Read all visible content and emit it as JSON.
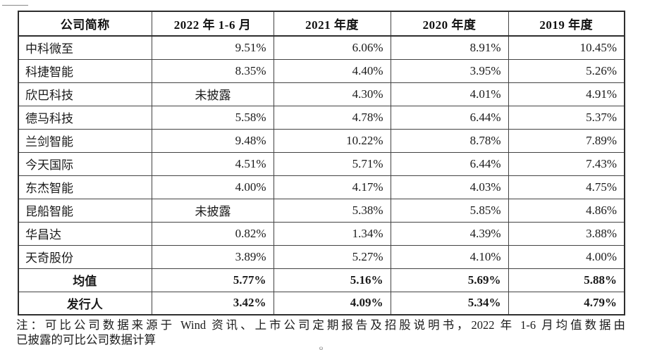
{
  "table": {
    "headers": [
      "公司简称",
      "2022 年 1-6 月",
      "2021 年度",
      "2020 年度",
      "2019 年度"
    ],
    "rows": [
      {
        "name": "中科微至",
        "values": [
          "9.51%",
          "6.06%",
          "8.91%",
          "10.45%"
        ],
        "bold": false
      },
      {
        "name": "科捷智能",
        "values": [
          "8.35%",
          "4.40%",
          "3.95%",
          "5.26%"
        ],
        "bold": false
      },
      {
        "name": "欣巴科技",
        "values": [
          "未披露",
          "4.30%",
          "4.01%",
          "4.91%"
        ],
        "bold": false
      },
      {
        "name": "德马科技",
        "values": [
          "5.58%",
          "4.78%",
          "6.44%",
          "5.37%"
        ],
        "bold": false
      },
      {
        "name": "兰剑智能",
        "values": [
          "9.48%",
          "10.22%",
          "8.78%",
          "7.89%"
        ],
        "bold": false
      },
      {
        "name": "今天国际",
        "values": [
          "4.51%",
          "5.71%",
          "6.44%",
          "7.43%"
        ],
        "bold": false
      },
      {
        "name": "东杰智能",
        "values": [
          "4.00%",
          "4.17%",
          "4.03%",
          "4.75%"
        ],
        "bold": false
      },
      {
        "name": "昆船智能",
        "values": [
          "未披露",
          "5.38%",
          "5.85%",
          "4.86%"
        ],
        "bold": false
      },
      {
        "name": "华昌达",
        "values": [
          "0.82%",
          "1.34%",
          "4.39%",
          "3.88%"
        ],
        "bold": false
      },
      {
        "name": "天奇股份",
        "values": [
          "3.89%",
          "5.27%",
          "4.10%",
          "4.00%"
        ],
        "bold": false
      },
      {
        "name": "均值",
        "values": [
          "5.77%",
          "5.16%",
          "5.69%",
          "5.88%"
        ],
        "bold": true
      },
      {
        "name": "发行人",
        "values": [
          "3.42%",
          "4.09%",
          "5.34%",
          "4.79%"
        ],
        "bold": true
      }
    ],
    "not_disclosed_label": "未披露"
  },
  "footnote": {
    "line1": "注：可比公司数据来源于 Wind 资讯、上市公司定期报告及招股说明书，2022 年 1-6 月均值数据由",
    "line2": "已披露的可比公司数据计算"
  },
  "page_number_fragment": "8",
  "colors": {
    "text": "#1a1a1a",
    "border_outer": "#2e2e2e",
    "border_inner": "#434343",
    "background": "#ffffff"
  }
}
